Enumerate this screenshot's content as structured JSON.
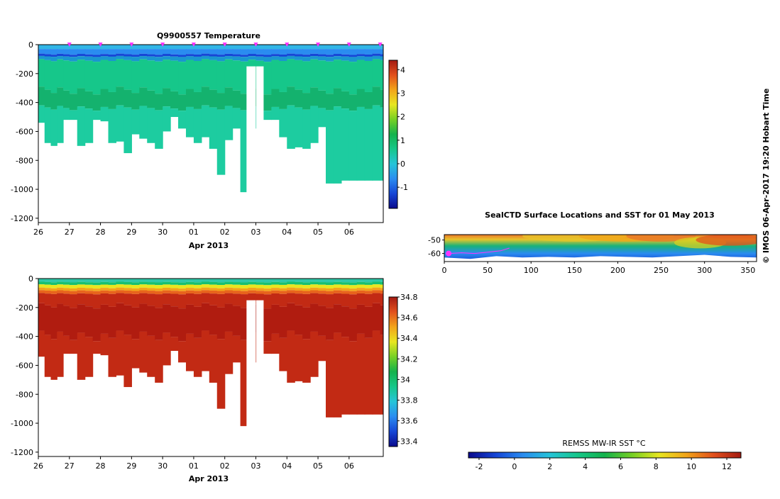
{
  "chart_data": [
    {
      "type": "heatmap",
      "title": "Q9900557  Temperature",
      "xlabel": "Apr 2013",
      "ylabel": "",
      "x_tick_labels": [
        "26",
        "27",
        "28",
        "29",
        "30",
        "01",
        "02",
        "03",
        "04",
        "05",
        "06"
      ],
      "y_ticks": [
        0,
        -200,
        -400,
        -600,
        -800,
        -1000,
        -1200
      ],
      "ylim": [
        -1230,
        0
      ],
      "xlim": [
        26,
        37.1
      ],
      "profile_days": [
        26.0,
        26.2,
        26.4,
        26.6,
        26.8,
        27.0,
        27.25,
        27.5,
        27.75,
        28.0,
        28.25,
        28.5,
        28.75,
        29.0,
        29.25,
        29.5,
        29.75,
        30.0,
        30.25,
        30.5,
        30.75,
        31.0,
        31.25,
        31.5,
        31.75,
        32.0,
        32.25,
        32.5,
        32.75,
        33.0,
        33.25,
        33.5,
        33.75,
        34.0,
        34.25,
        34.5,
        34.75,
        35.0,
        35.25,
        35.5,
        35.75,
        36.0,
        36.25,
        36.5,
        36.75,
        37.0
      ],
      "profile_max_depths": [
        -540,
        -680,
        -700,
        -680,
        -520,
        -520,
        -700,
        -680,
        -520,
        -530,
        -680,
        -670,
        -750,
        -620,
        -650,
        -680,
        -720,
        -600,
        -500,
        -580,
        -640,
        -680,
        -640,
        -720,
        -900,
        -660,
        -580,
        -1020,
        -580,
        -150,
        -520,
        -520,
        -640,
        -720,
        -710,
        -720,
        -680,
        -570,
        -960,
        -960,
        -940,
        -940,
        -940,
        -940,
        -940,
        -940
      ],
      "gap": {
        "start": 32.7,
        "end": 33.0,
        "above_depth": -150
      },
      "colorbar": {
        "label": "",
        "ticks": [
          4,
          3,
          2,
          1,
          0,
          -1
        ],
        "min": -1.9,
        "max": 4.4,
        "colors": [
          "#0a0a8c",
          "#1646d6",
          "#2a8cf0",
          "#26c4d8",
          "#16c78a",
          "#14b24c",
          "#76d024",
          "#e8e620",
          "#f2a41a",
          "#e2501c",
          "#a41a12"
        ]
      },
      "surface_markers": [
        27,
        28,
        29,
        30,
        31,
        32,
        33,
        34,
        35,
        36,
        37
      ],
      "marker_color": "#ff33ff"
    },
    {
      "type": "heatmap",
      "title": "",
      "xlabel": "Apr 2013",
      "ylabel": "",
      "x_tick_labels": [
        "26",
        "27",
        "28",
        "29",
        "30",
        "01",
        "02",
        "03",
        "04",
        "05",
        "06"
      ],
      "y_ticks": [
        0,
        -200,
        -400,
        -600,
        -800,
        -1000,
        -1200
      ],
      "ylim": [
        -1230,
        0
      ],
      "xlim": [
        26,
        37.1
      ],
      "colorbar": {
        "label": "",
        "ticks": [
          34.8,
          34.6,
          34.4,
          34.2,
          34,
          33.8,
          33.6,
          33.4
        ],
        "min": 33.35,
        "max": 34.8,
        "colors": [
          "#0a0a8c",
          "#1646d6",
          "#2a8cf0",
          "#26c4d8",
          "#16c78a",
          "#14b24c",
          "#76d024",
          "#e8e620",
          "#f2a41a",
          "#e2501c",
          "#a41a12"
        ]
      }
    },
    {
      "type": "heatmap",
      "title": "SealCTD Surface Locations and SST for 01 May 2013",
      "xlabel": "",
      "ylabel": "",
      "x_ticks": [
        0,
        50,
        100,
        150,
        200,
        250,
        300,
        350
      ],
      "y_ticks": [
        -50,
        -60
      ],
      "xlim": [
        0,
        360
      ],
      "ylim": [
        -66,
        -46
      ],
      "track_color": "#ff33ff",
      "track_start": {
        "lon": 5,
        "lat": -60
      },
      "colorbar": {
        "label": "REMSS MW-IR SST °C",
        "ticks": [
          -2,
          0,
          2,
          4,
          6,
          8,
          10,
          12
        ],
        "min": -2.6,
        "max": 12.8,
        "colors": [
          "#0a0a8c",
          "#1646d6",
          "#2a8cf0",
          "#26c4d8",
          "#16c78a",
          "#14b24c",
          "#76d024",
          "#e8e620",
          "#f2a41a",
          "#e2501c",
          "#a41a12"
        ]
      }
    }
  ],
  "credit": "© IMOS 06-Apr-2017 19:20 Hobart Time"
}
